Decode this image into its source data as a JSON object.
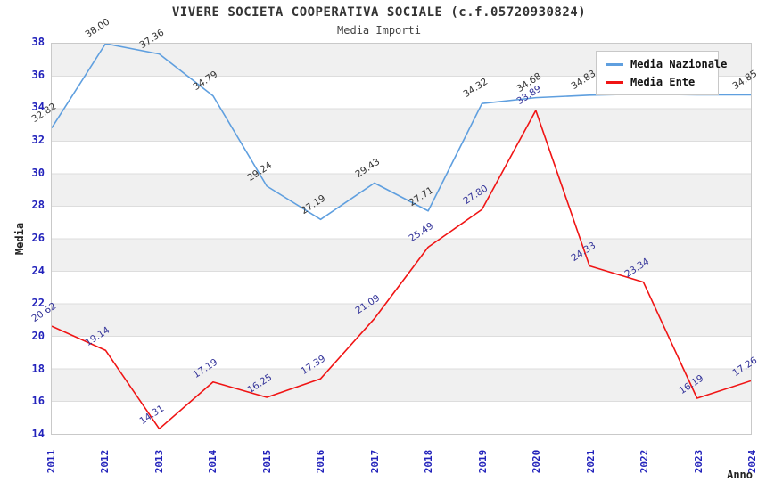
{
  "chart": {
    "title": "VIVERE SOCIETA COOPERATIVA SOCIALE (c.f.05720930824)",
    "subtitle": "Media Importi",
    "ylabel": "Media",
    "xlabel": "Anno"
  },
  "legend": {
    "position": "top-right",
    "items": [
      {
        "label": "Media Nazionale",
        "color": "#5f9fdf"
      },
      {
        "label": "Media Ente",
        "color": "#f01414"
      }
    ]
  },
  "chart_data": {
    "type": "line",
    "title": "VIVERE SOCIETA COOPERATIVA SOCIALE (c.f.05720930824)",
    "subtitle": "Media Importi",
    "xlabel": "Anno",
    "ylabel": "Media",
    "x": [
      "2011",
      "2012",
      "2013",
      "2014",
      "2015",
      "2016",
      "2017",
      "2018",
      "2019",
      "2020",
      "2021",
      "2022",
      "2023",
      "2024"
    ],
    "ylim": [
      14,
      38
    ],
    "yticks": [
      38,
      36,
      34,
      32,
      30,
      28,
      26,
      24,
      22,
      20,
      18,
      16,
      14
    ],
    "ytick_step": 2,
    "grid": "alternating-horizontal-bands",
    "band_color": "#f0f0f0",
    "tick_label_color": "#2222bb",
    "legend_position": "top-right",
    "series": [
      {
        "name": "Media Nazionale",
        "color": "#5f9fdf",
        "label_color": "#333333",
        "values": [
          32.82,
          38.0,
          37.36,
          34.79,
          29.24,
          27.19,
          29.43,
          27.71,
          34.32,
          34.68,
          34.83,
          34.9,
          34.85,
          34.85
        ]
      },
      {
        "name": "Media Ente",
        "color": "#f01414",
        "label_color": "#333399",
        "values": [
          20.62,
          19.14,
          14.31,
          17.19,
          16.25,
          17.39,
          21.09,
          25.49,
          27.8,
          33.89,
          24.33,
          23.34,
          16.19,
          17.26
        ]
      }
    ]
  }
}
